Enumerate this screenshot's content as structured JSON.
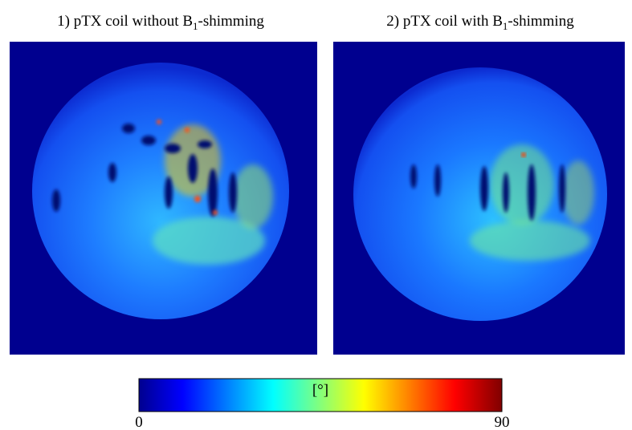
{
  "panels": [
    {
      "title": {
        "before": "1) pTX coil without B",
        "subscript": "1",
        "after": "-shimming"
      }
    },
    {
      "title": {
        "before": "2) pTX coil with B",
        "subscript": "1",
        "after": "-shimming"
      }
    }
  ],
  "colorbar": {
    "label": "[°]",
    "range": [
      0,
      90
    ]
  }
}
